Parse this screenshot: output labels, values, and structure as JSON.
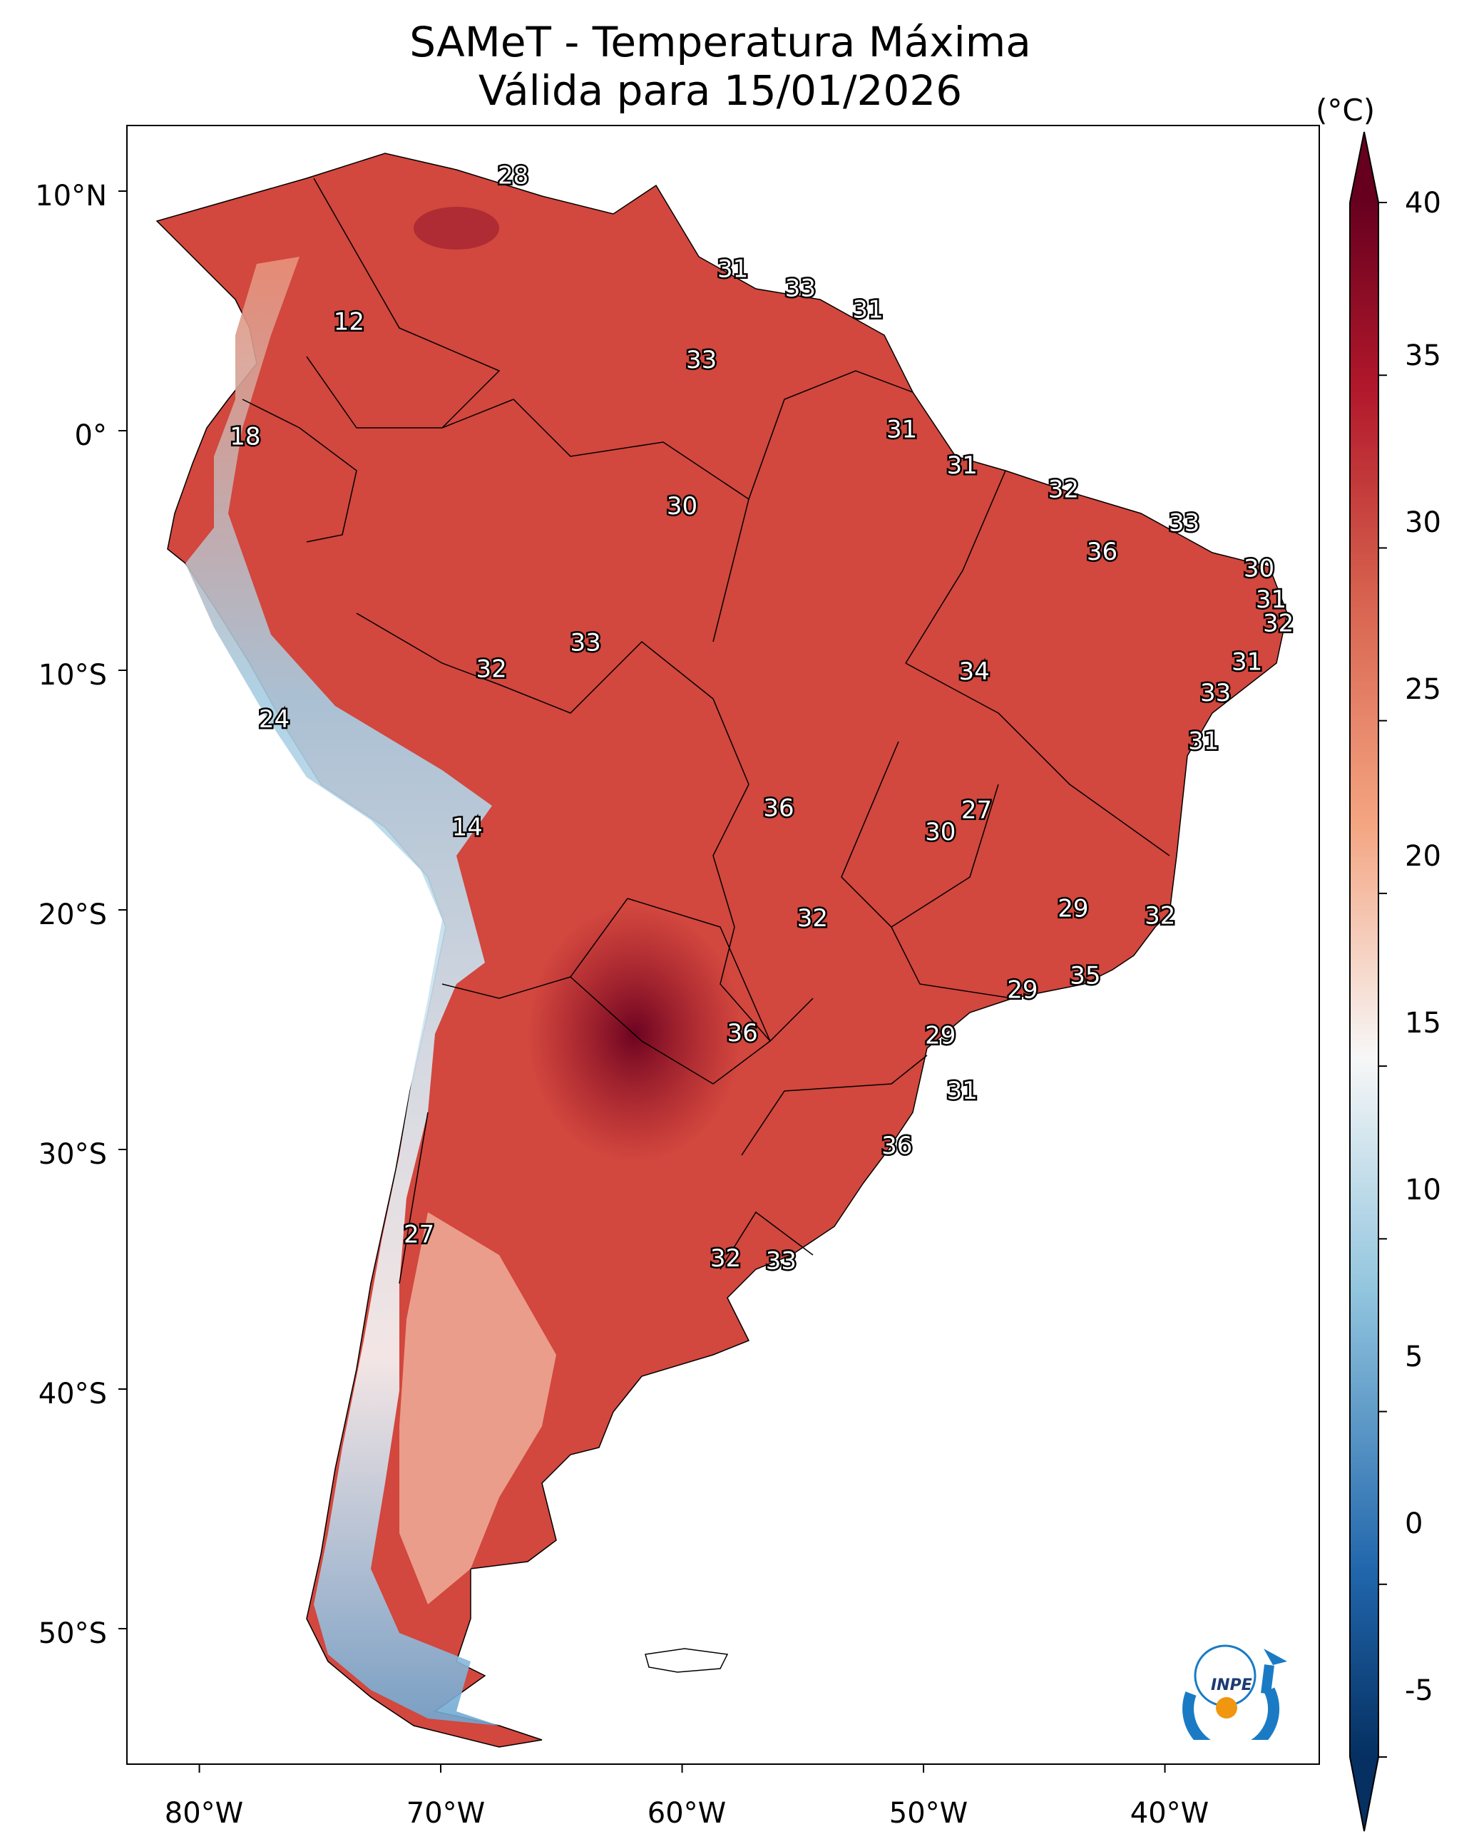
{
  "title": {
    "line1": "SAMeT - Temperatura Máxima",
    "line2": "Válida para 15/01/2026"
  },
  "colorbar": {
    "unit": "(°C)",
    "ticks": [
      "40",
      "35",
      "30",
      "25",
      "20",
      "15",
      "10",
      "5",
      "0",
      "-5"
    ],
    "range": [
      -5,
      40
    ],
    "colors": {
      "hot": "#67001f",
      "warm": "#b2182b",
      "mild": "#d6604d",
      "neutral": "#f7f7f7",
      "cool": "#92c5de",
      "cold": "#2166ac",
      "coldest": "#053061"
    }
  },
  "axes": {
    "lat_labels": [
      "10°N",
      "0°",
      "10°S",
      "20°S",
      "30°S",
      "40°S",
      "50°S"
    ],
    "lon_labels": [
      "80°W",
      "70°W",
      "60°W",
      "50°W",
      "40°W"
    ]
  },
  "temperature_labels": [
    {
      "value": "28",
      "lon": -67.0,
      "lat": 10.6
    },
    {
      "value": "12",
      "lon": -73.8,
      "lat": 4.5
    },
    {
      "value": "31",
      "lon": -57.9,
      "lat": 6.7
    },
    {
      "value": "33",
      "lon": -55.1,
      "lat": 5.9
    },
    {
      "value": "31",
      "lon": -52.3,
      "lat": 5.0
    },
    {
      "value": "33",
      "lon": -59.2,
      "lat": 2.9
    },
    {
      "value": "18",
      "lon": -78.1,
      "lat": -0.3
    },
    {
      "value": "31",
      "lon": -50.9,
      "lat": 0.0
    },
    {
      "value": "31",
      "lon": -48.4,
      "lat": -1.5
    },
    {
      "value": "32",
      "lon": -44.2,
      "lat": -2.5
    },
    {
      "value": "33",
      "lon": -39.2,
      "lat": -3.9
    },
    {
      "value": "30",
      "lon": -60.0,
      "lat": -3.2
    },
    {
      "value": "36",
      "lon": -42.6,
      "lat": -5.1
    },
    {
      "value": "30",
      "lon": -36.1,
      "lat": -5.8
    },
    {
      "value": "31",
      "lon": -35.6,
      "lat": -7.1
    },
    {
      "value": "32",
      "lon": -35.3,
      "lat": -8.1
    },
    {
      "value": "33",
      "lon": -64.0,
      "lat": -8.9
    },
    {
      "value": "32",
      "lon": -67.9,
      "lat": -10.0
    },
    {
      "value": "34",
      "lon": -47.9,
      "lat": -10.1
    },
    {
      "value": "31",
      "lon": -36.6,
      "lat": -9.7
    },
    {
      "value": "33",
      "lon": -37.9,
      "lat": -11.0
    },
    {
      "value": "24",
      "lon": -76.9,
      "lat": -12.1
    },
    {
      "value": "31",
      "lon": -38.4,
      "lat": -13.0
    },
    {
      "value": "14",
      "lon": -68.9,
      "lat": -16.6
    },
    {
      "value": "36",
      "lon": -56.0,
      "lat": -15.8
    },
    {
      "value": "27",
      "lon": -47.8,
      "lat": -15.9
    },
    {
      "value": "30",
      "lon": -49.3,
      "lat": -16.8
    },
    {
      "value": "29",
      "lon": -43.8,
      "lat": -20.0
    },
    {
      "value": "32",
      "lon": -54.6,
      "lat": -20.4
    },
    {
      "value": "32",
      "lon": -40.2,
      "lat": -20.3
    },
    {
      "value": "35",
      "lon": -43.3,
      "lat": -22.8
    },
    {
      "value": "29",
      "lon": -45.9,
      "lat": -23.4
    },
    {
      "value": "36",
      "lon": -57.5,
      "lat": -25.2
    },
    {
      "value": "29",
      "lon": -49.3,
      "lat": -25.3
    },
    {
      "value": "31",
      "lon": -48.4,
      "lat": -27.6
    },
    {
      "value": "36",
      "lon": -51.1,
      "lat": -29.9
    },
    {
      "value": "27",
      "lon": -70.9,
      "lat": -33.6
    },
    {
      "value": "32",
      "lon": -58.2,
      "lat": -34.6
    },
    {
      "value": "33",
      "lon": -55.9,
      "lat": -34.7
    }
  ],
  "logo": {
    "text": "INPE"
  }
}
